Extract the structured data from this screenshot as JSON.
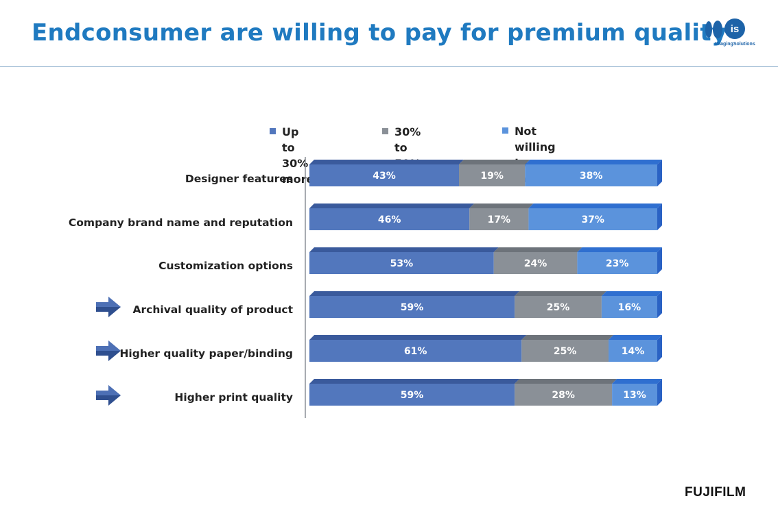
{
  "title": "Endconsumer are willing to pay for premium quality",
  "logo": {
    "mark": "is",
    "text": "ImagingSolutions",
    "name": "imaging-solutions-logo"
  },
  "footer": {
    "brand": "FUJIFILM"
  },
  "colors": {
    "title": "#1f7ac0",
    "series_1": "#5277bd",
    "series_2": "#8a9097",
    "series_3": "#5b93dc",
    "arrow": "#2f4f8f"
  },
  "legend": [
    {
      "label": "Up to 30%\nmore",
      "color": "#5277bd"
    },
    {
      "label": "30% to 50%\nmore",
      "color": "#8a9097"
    },
    {
      "label": "Not willing to pay\nmore",
      "color": "#5b93dc"
    }
  ],
  "highlighted_icon": "arrow-right-icon",
  "chart_data": {
    "type": "bar",
    "orientation": "horizontal",
    "stacked": true,
    "categories": [
      "Designer features",
      "Company brand name and reputation",
      "Customization options",
      "Archival quality of product",
      "Higher quality paper/binding",
      "Higher print quality"
    ],
    "series": [
      {
        "name": "Up to 30% more",
        "values": [
          43,
          46,
          53,
          59,
          61,
          59
        ]
      },
      {
        "name": "30% to 50% more",
        "values": [
          19,
          17,
          24,
          25,
          25,
          28
        ]
      },
      {
        "name": "Not willing to pay more",
        "values": [
          38,
          37,
          23,
          16,
          14,
          13
        ]
      }
    ],
    "data_labels": [
      [
        "43%",
        "19%",
        "38%"
      ],
      [
        "46%",
        "17%",
        "37%"
      ],
      [
        "53%",
        "24%",
        "23%"
      ],
      [
        "59%",
        "25%",
        "16%"
      ],
      [
        "61%",
        "25%",
        "14%"
      ],
      [
        "59%",
        "28%",
        "13%"
      ]
    ],
    "highlighted": [
      false,
      false,
      false,
      true,
      true,
      true
    ],
    "xlim": [
      0,
      100
    ],
    "legend_position": "top"
  }
}
